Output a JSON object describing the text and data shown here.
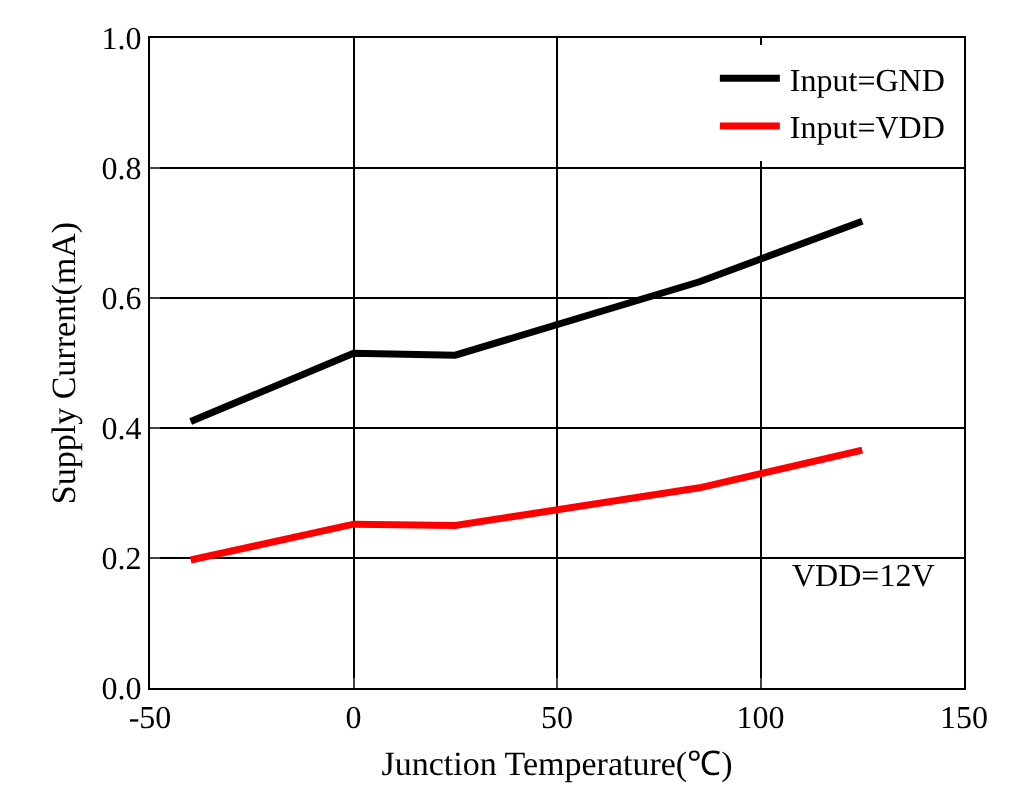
{
  "chart_data": {
    "type": "line",
    "xlabel": "Junction Temperature(℃)",
    "ylabel": "Supply Current(mA)",
    "x": [
      -40,
      0,
      25,
      85,
      125
    ],
    "series": [
      {
        "name": "Input=GND",
        "color": "#000000",
        "values": [
          0.41,
          0.515,
          0.512,
          0.625,
          0.718
        ]
      },
      {
        "name": "Input=VDD",
        "color": "#ff0000",
        "values": [
          0.197,
          0.252,
          0.25,
          0.308,
          0.366
        ]
      }
    ],
    "xlim": [
      -50,
      150
    ],
    "xticks": [
      -50,
      0,
      50,
      100,
      150
    ],
    "ylim": [
      0,
      1.0
    ],
    "yticks": [
      {
        "value": 0,
        "label": "0.0"
      },
      0.2,
      0.4,
      0.6,
      0.8,
      {
        "value": 1.0,
        "label": "1.0"
      }
    ],
    "grid": true,
    "legend": "top right",
    "marker": "none",
    "line_style": "solid",
    "annotations": [
      "VDD=12V"
    ]
  }
}
